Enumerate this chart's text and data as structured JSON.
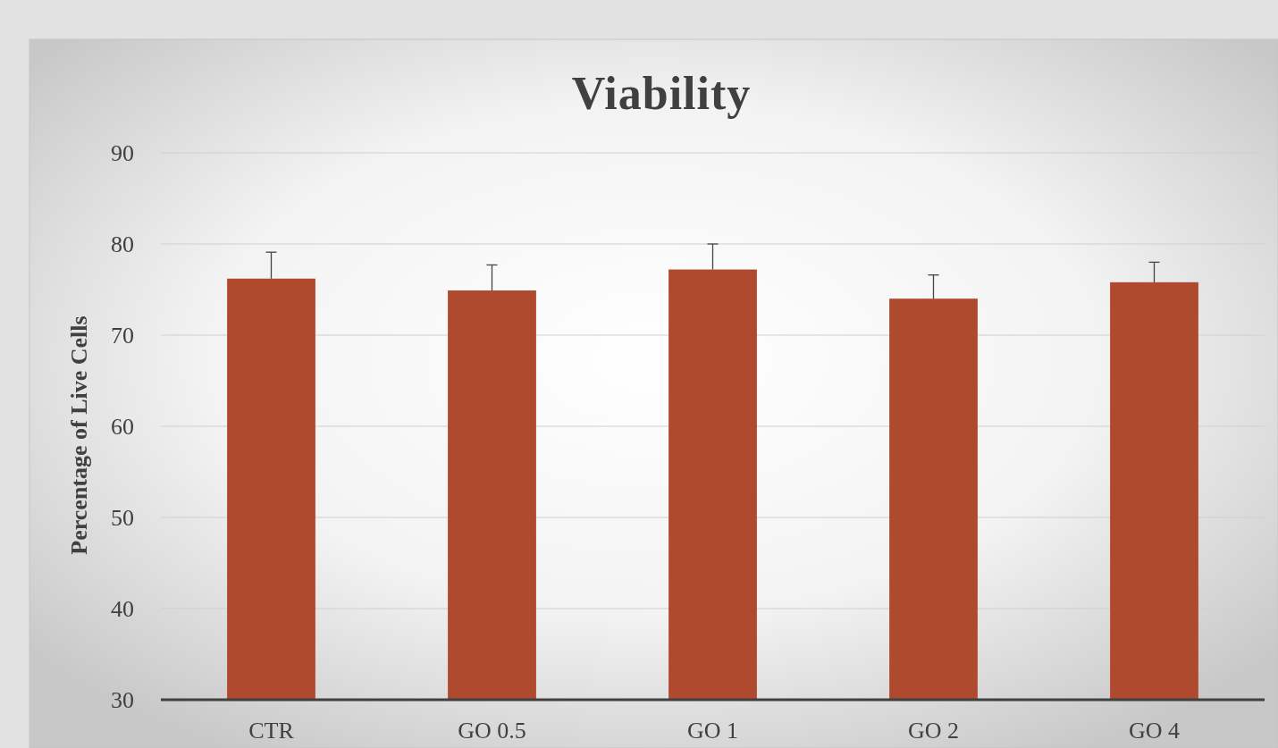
{
  "chart_data": {
    "type": "bar",
    "title": "Viability",
    "ylabel": "Percentage of Live Cells",
    "categories": [
      "CTR",
      "GO 0.5",
      "GO 1",
      "GO 2",
      "GO 4"
    ],
    "values": [
      76.2,
      74.9,
      77.2,
      74.0,
      75.8
    ],
    "errors": [
      [
        76.2,
        79.1
      ],
      [
        74.9,
        77.7
      ],
      [
        77.2,
        80.0
      ],
      [
        74.0,
        76.6
      ],
      [
        75.8,
        78.0
      ]
    ],
    "color": "#b04a2f",
    "ylim": [
      30,
      90
    ],
    "yticks": [
      30,
      40,
      50,
      60,
      70,
      80,
      90
    ],
    "grid": "y"
  }
}
